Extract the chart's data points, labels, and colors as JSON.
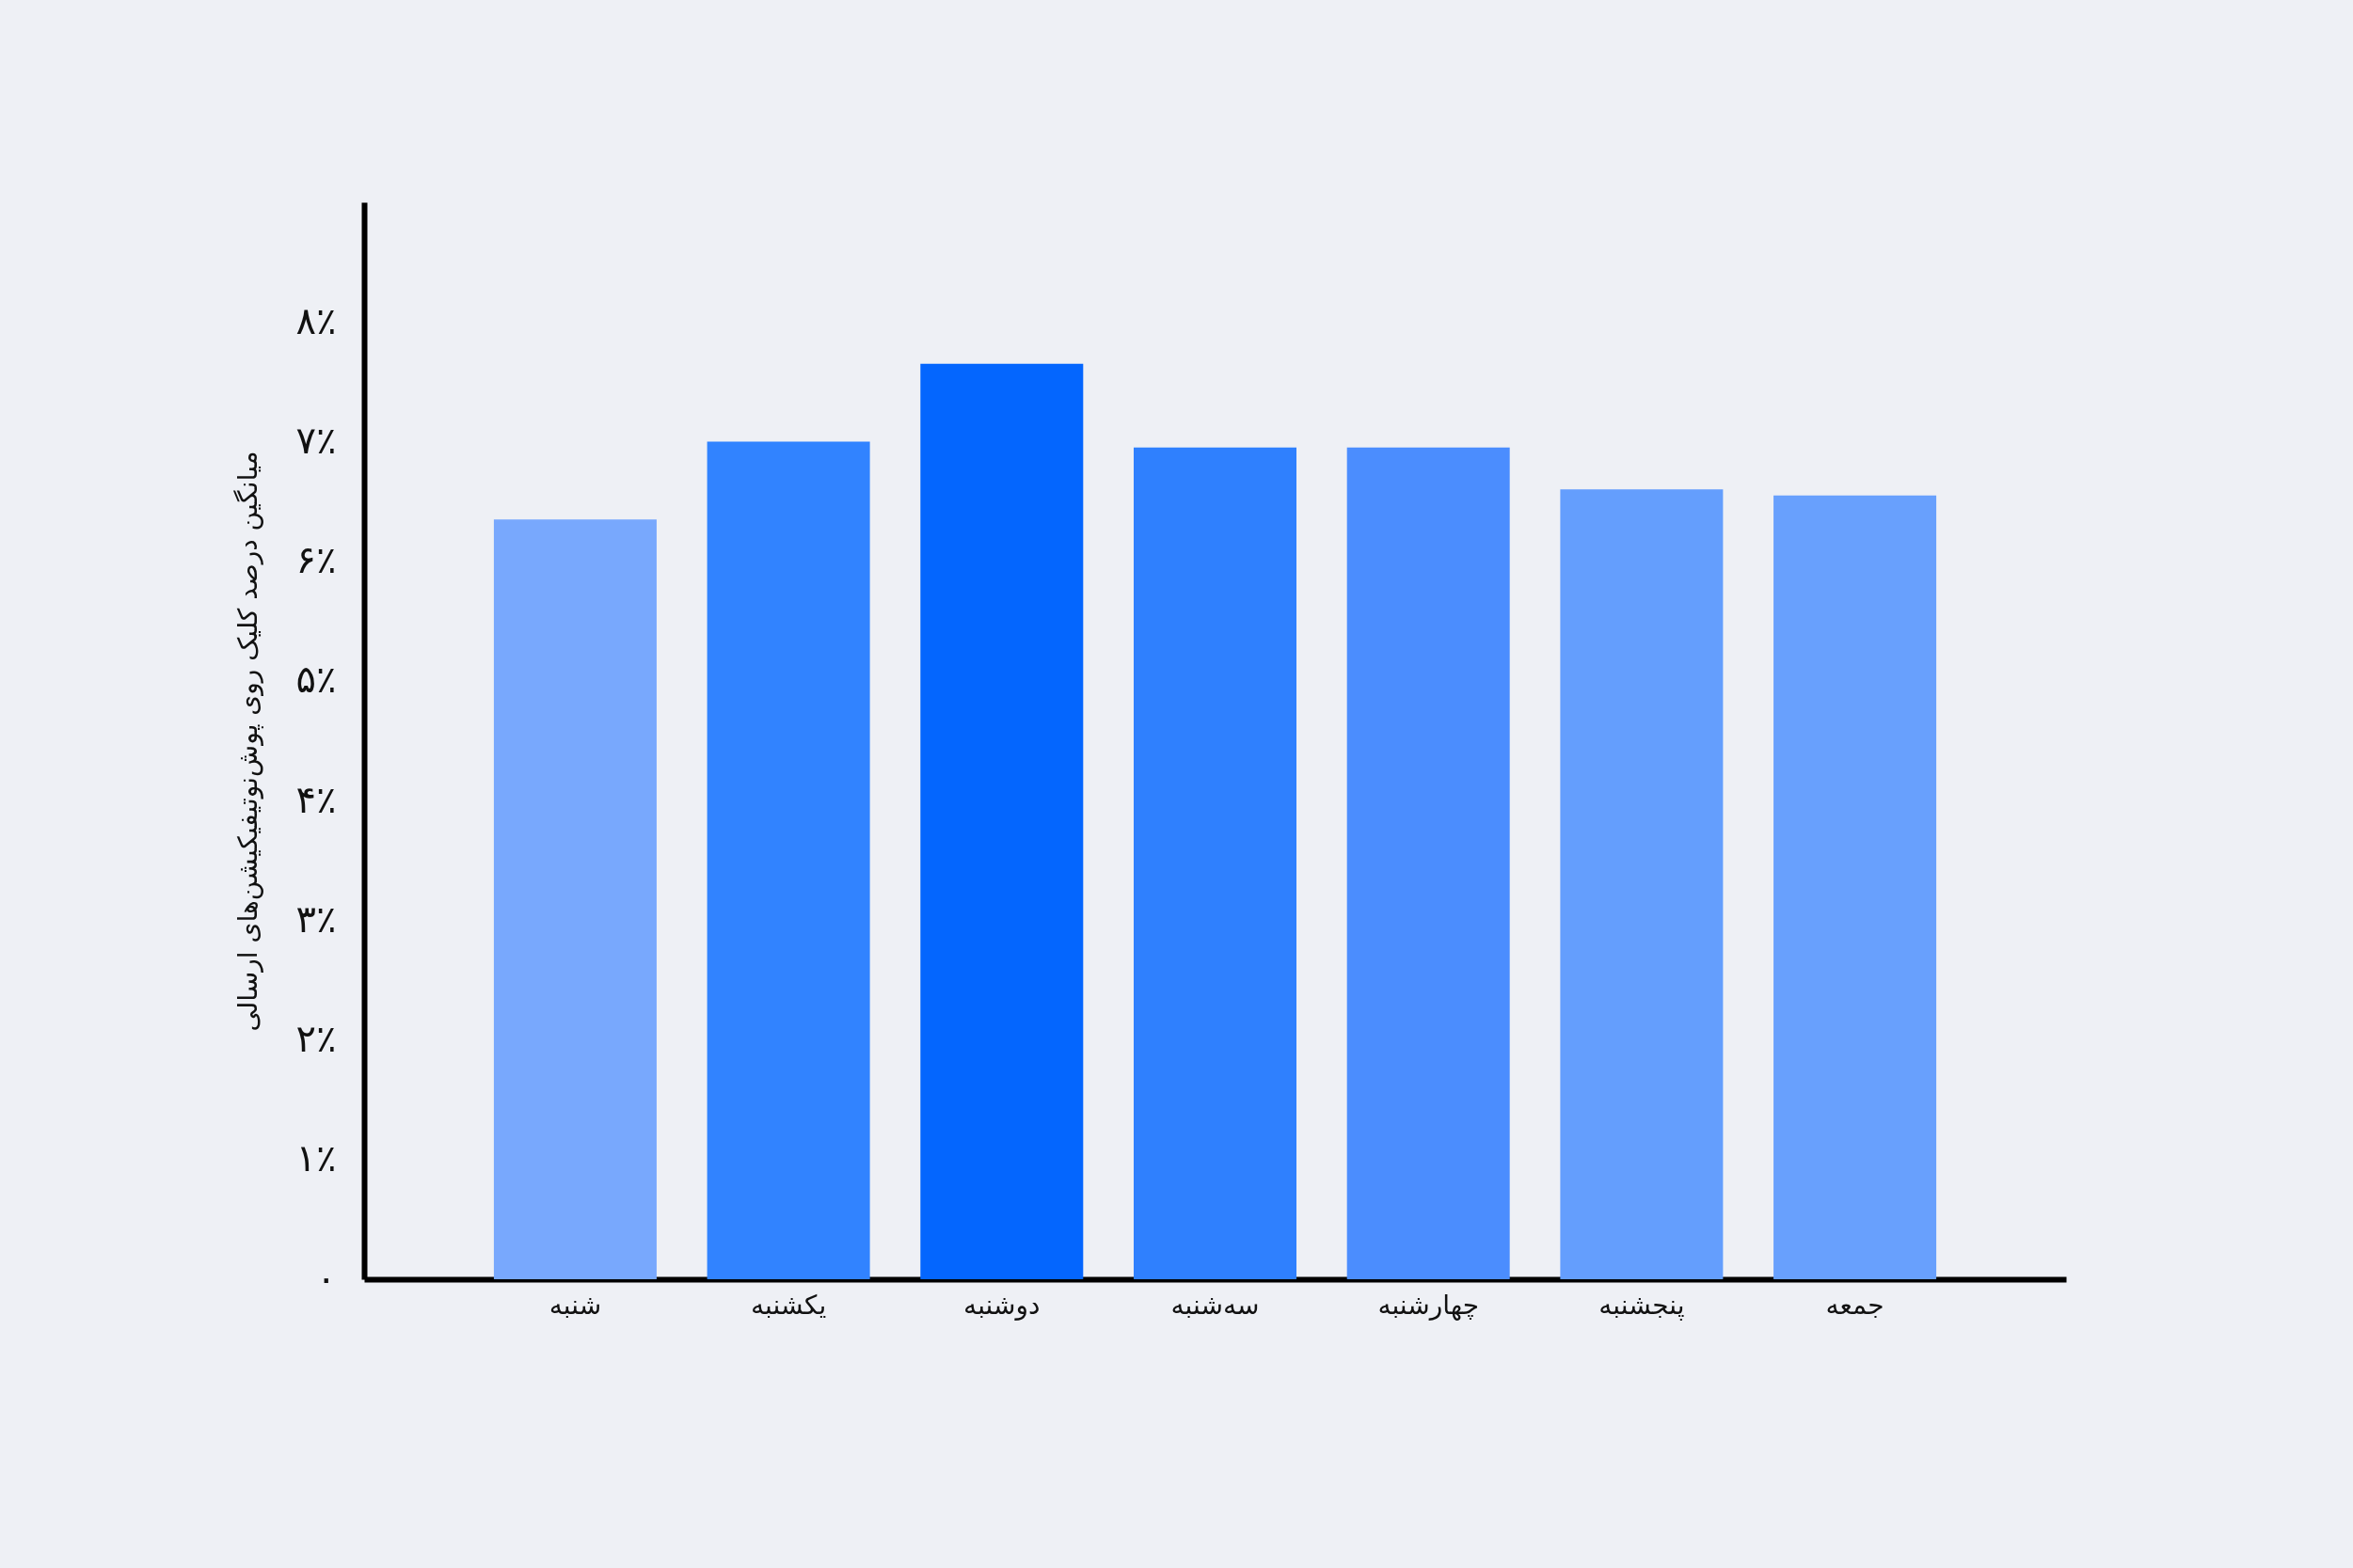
{
  "chart_data": {
    "type": "bar",
    "ylabel": "میانگین درصد کلیک روی پوش‌نوتیفیکیشن‌های ارسالی",
    "categories": [
      "شنبه",
      "یکشنبه",
      "دوشنبه",
      "سه‌شنبه",
      "چهارشنبه",
      "پنجشنبه",
      "جمعه"
    ],
    "values": [
      6.35,
      7.0,
      7.65,
      6.95,
      6.95,
      6.6,
      6.55
    ],
    "colors": [
      "#78a8fd",
      "#3183ff",
      "#0466fe",
      "#2f80fe",
      "#4b8dfe",
      "#649efd",
      "#68a0fd"
    ],
    "ylim": [
      0,
      9
    ],
    "yticks": [
      {
        "value": 0,
        "label": "۰"
      },
      {
        "value": 1,
        "label": "۱٪"
      },
      {
        "value": 2,
        "label": "۲٪"
      },
      {
        "value": 3,
        "label": "۳٪"
      },
      {
        "value": 4,
        "label": "۴٪"
      },
      {
        "value": 5,
        "label": "۵٪"
      },
      {
        "value": 6,
        "label": "۶٪"
      },
      {
        "value": 7,
        "label": "۷٪"
      },
      {
        "value": 8,
        "label": "۸٪"
      }
    ],
    "grid": false
  }
}
